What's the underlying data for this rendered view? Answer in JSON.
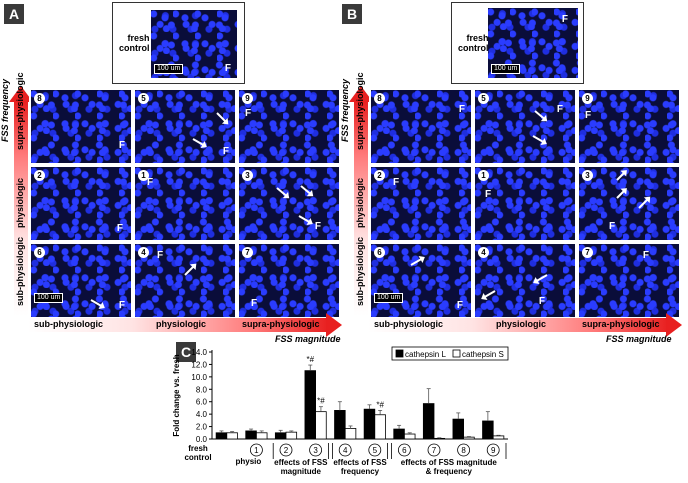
{
  "panel_letters": {
    "A": "A",
    "B": "B",
    "C": "C"
  },
  "fresh_control_label": "fresh\ncontrol",
  "scale_bar_label": "100 um",
  "f_label": "F",
  "panels": {
    "A": {
      "tiles": [
        {
          "num": "8"
        },
        {
          "num": "5"
        },
        {
          "num": "9"
        },
        {
          "num": "2"
        },
        {
          "num": "1"
        },
        {
          "num": "3"
        },
        {
          "num": "6"
        },
        {
          "num": "4"
        },
        {
          "num": "7"
        }
      ]
    },
    "B": {
      "tiles": [
        {
          "num": "8"
        },
        {
          "num": "5"
        },
        {
          "num": "9"
        },
        {
          "num": "2"
        },
        {
          "num": "1"
        },
        {
          "num": "3"
        },
        {
          "num": "6"
        },
        {
          "num": "4"
        },
        {
          "num": "7"
        }
      ]
    }
  },
  "x_axis": {
    "ticks": [
      "sub-physiologic",
      "physiologic",
      "supra-physiologic"
    ],
    "title": "FSS magnitude"
  },
  "y_axis": {
    "ticks": [
      "sub-physiologic",
      "physiologic",
      "supra-physiologic"
    ],
    "title": "FSS frequency"
  },
  "chart_data": {
    "type": "bar",
    "ylabel": "Fold change vs. fresh",
    "ylim": [
      0,
      14
    ],
    "yticks": [
      "0.0",
      "2.0",
      "4.0",
      "6.0",
      "8.0",
      "10.0",
      "12.0",
      "14.0"
    ],
    "categories": [
      "fresh control",
      "1",
      "2",
      "3",
      "4",
      "5",
      "6",
      "7",
      "8",
      "9"
    ],
    "series": [
      {
        "name": "cathepsin L",
        "color": "#000000",
        "values": [
          1.0,
          1.3,
          1.0,
          11.0,
          4.6,
          4.8,
          1.6,
          5.7,
          3.2,
          2.9
        ],
        "errors": [
          0.3,
          0.3,
          0.4,
          0.9,
          1.4,
          0.7,
          0.6,
          2.4,
          1.0,
          1.5
        ]
      },
      {
        "name": "cathepsin S",
        "color": "#ffffff",
        "values": [
          1.0,
          1.0,
          1.1,
          4.4,
          1.7,
          3.9,
          0.8,
          0.1,
          0.3,
          0.5
        ],
        "errors": [
          0.2,
          0.3,
          0.2,
          0.8,
          0.4,
          0.7,
          0.2,
          0.1,
          0.1,
          0.1
        ]
      }
    ],
    "annotations": [
      {
        "index": 3,
        "series": 0,
        "text": "*#"
      },
      {
        "index": 3,
        "series": 1,
        "text": "*#"
      },
      {
        "index": 5,
        "series": 1,
        "text": "*#"
      }
    ],
    "group_labels": [
      {
        "text": "fresh\ncontrol"
      },
      {
        "text": "physio"
      },
      {
        "text": "effects of FSS\nmagnitude"
      },
      {
        "text": "effects of FSS\nfrequency"
      },
      {
        "text": "effects of FSS magnitude\n& frequency"
      }
    ],
    "legend_position": "top-right"
  }
}
